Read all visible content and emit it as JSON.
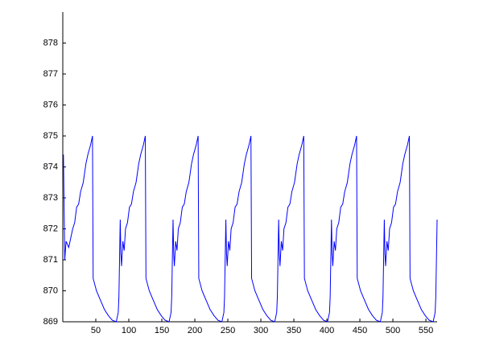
{
  "chart_data": {
    "type": "line",
    "x": [
      1,
      3,
      5,
      9,
      15,
      18,
      21,
      24,
      27,
      31,
      35,
      38,
      42,
      45,
      46,
      51,
      57,
      63,
      69,
      75,
      81,
      84,
      85,
      87,
      88,
      89,
      91,
      93,
      95,
      98,
      101,
      104,
      107,
      111,
      115,
      118,
      122,
      125,
      126,
      131,
      137,
      143,
      149,
      155,
      161,
      164,
      165,
      167,
      168,
      169,
      171,
      173,
      175,
      178,
      181,
      184,
      187,
      191,
      195,
      198,
      202,
      205,
      206,
      211,
      217,
      223,
      229,
      235,
      241,
      244,
      245,
      247,
      248,
      249,
      251,
      253,
      255,
      258,
      261,
      264,
      267,
      271,
      275,
      278,
      282,
      285,
      286,
      291,
      297,
      303,
      309,
      315,
      321,
      324,
      325,
      327,
      328,
      329,
      331,
      333,
      335,
      338,
      341,
      344,
      347,
      351,
      355,
      358,
      362,
      365,
      366,
      371,
      377,
      383,
      389,
      395,
      401,
      404,
      405,
      407,
      408,
      409,
      411,
      413,
      415,
      418,
      421,
      424,
      427,
      431,
      435,
      438,
      442,
      445,
      446,
      451,
      457,
      463,
      469,
      475,
      481,
      484,
      485,
      487,
      488,
      489,
      491,
      493,
      495,
      498,
      501,
      504,
      507,
      511,
      515,
      518,
      522,
      525,
      526,
      531,
      537,
      543,
      549,
      555,
      561,
      564,
      565,
      567
    ],
    "series": [
      {
        "color": "#0000ff",
        "values": [
          874.4,
          871.0,
          871.6,
          871.4,
          872.0,
          872.2,
          872.7,
          872.8,
          873.2,
          873.5,
          874.1,
          874.4,
          874.7,
          875.0,
          870.4,
          870.0,
          869.7,
          869.4,
          869.2,
          869.05,
          869.0,
          869.3,
          869.8,
          872.3,
          871.2,
          870.8,
          871.6,
          871.3,
          872.0,
          872.2,
          872.7,
          872.8,
          873.2,
          873.5,
          874.1,
          874.4,
          874.7,
          875.0,
          870.4,
          870.0,
          869.7,
          869.4,
          869.2,
          869.05,
          869.0,
          869.3,
          869.8,
          872.3,
          871.2,
          870.8,
          871.6,
          871.3,
          872.0,
          872.2,
          872.7,
          872.8,
          873.2,
          873.5,
          874.1,
          874.4,
          874.7,
          875.0,
          870.4,
          870.0,
          869.7,
          869.4,
          869.2,
          869.05,
          869.0,
          869.3,
          869.8,
          872.3,
          871.2,
          870.8,
          871.6,
          871.3,
          872.0,
          872.2,
          872.7,
          872.8,
          873.2,
          873.5,
          874.1,
          874.4,
          874.7,
          875.0,
          870.4,
          870.0,
          869.7,
          869.4,
          869.2,
          869.05,
          869.0,
          869.3,
          869.8,
          872.3,
          871.2,
          870.8,
          871.6,
          871.3,
          872.0,
          872.2,
          872.7,
          872.8,
          873.2,
          873.5,
          874.1,
          874.4,
          874.7,
          875.0,
          870.4,
          870.0,
          869.7,
          869.4,
          869.2,
          869.05,
          869.0,
          869.3,
          869.8,
          872.3,
          871.2,
          870.8,
          871.6,
          871.3,
          872.0,
          872.2,
          872.7,
          872.8,
          873.2,
          873.5,
          874.1,
          874.4,
          874.7,
          875.0,
          870.4,
          870.0,
          869.7,
          869.4,
          869.2,
          869.05,
          869.0,
          869.3,
          869.8,
          872.3,
          871.2,
          870.8,
          871.6,
          871.3,
          872.0,
          872.2,
          872.7,
          872.8,
          873.2,
          873.5,
          874.1,
          874.4,
          874.7,
          875.0,
          870.4,
          870.0,
          869.7,
          869.4,
          869.2,
          869.05,
          869.0,
          869.3,
          869.8,
          872.3
        ]
      }
    ],
    "xlim": [
      0,
      567
    ],
    "xticks": [
      50,
      100,
      150,
      200,
      250,
      300,
      350,
      400,
      450,
      500,
      550
    ],
    "ylim": [
      869,
      879
    ],
    "yticks": [
      869,
      870,
      871,
      872,
      873,
      874,
      875,
      876,
      877,
      878
    ]
  }
}
